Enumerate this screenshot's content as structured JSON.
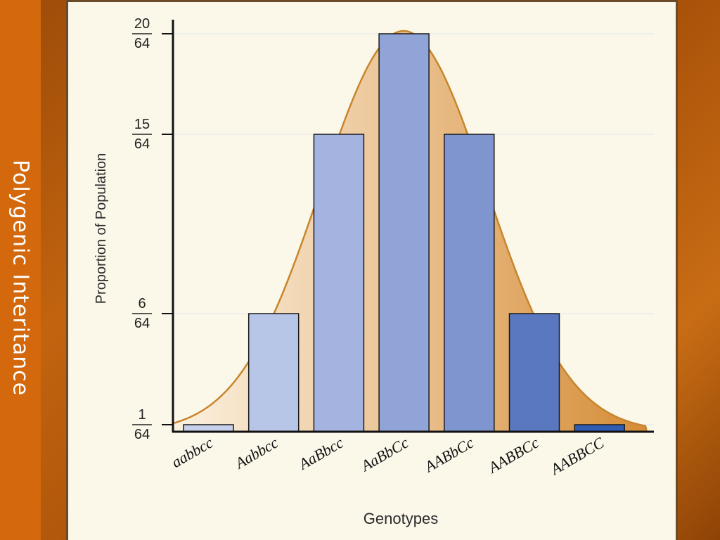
{
  "slide": {
    "title": "Polygenic Interitance"
  },
  "chart_data": {
    "type": "bar",
    "title": "",
    "xlabel": "Genotypes",
    "ylabel": "Proportion of Population",
    "categories": [
      "aabbcc",
      "Aabbcc",
      "AaBbcc",
      "AaBbCc",
      "AABbCc",
      "AABBCc",
      "AABBCC"
    ],
    "values": [
      1,
      6,
      15,
      20,
      15,
      6,
      1
    ],
    "denominator": 64,
    "ylim": [
      0,
      20
    ],
    "yticks": [
      {
        "value": 1,
        "num": "1",
        "den": "64"
      },
      {
        "value": 6,
        "num": "6",
        "den": "64"
      },
      {
        "value": 15,
        "num": "15",
        "den": "64"
      },
      {
        "value": 20,
        "num": "20",
        "den": "64"
      }
    ],
    "grid": true,
    "overlay": "normal distribution curve",
    "colors": {
      "bars": [
        "#c7d1ec",
        "#b7c5e7",
        "#a4b3df",
        "#91a4d8",
        "#7f95cf",
        "#5a78c0",
        "#2f5db4"
      ],
      "curve_stroke": "#c8852c",
      "curve_fill_light": "#fbefdc",
      "curve_fill_dark": "#d9943f"
    }
  }
}
